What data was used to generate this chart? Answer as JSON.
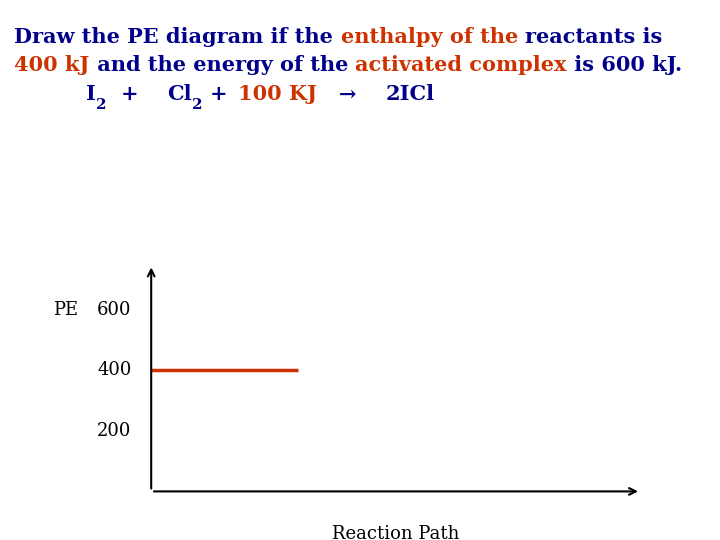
{
  "bg_color": "#ffffff",
  "title_color_blue": "#00008B",
  "title_color_red": "#cc3300",
  "text_color_black": "#000000",
  "line_color": "#cc3300",
  "pe_label": "PE",
  "xlabel": "Reaction Path",
  "yticks": [
    200,
    400,
    600
  ],
  "reactant_level": 400,
  "line_x_start": 0.0,
  "line_x_end": 0.3,
  "ylim": [
    0,
    750
  ],
  "xlim": [
    0,
    1.0
  ],
  "fontsize_title": 15,
  "fontsize_eq": 15,
  "fontsize_tick": 13,
  "fontsize_pe": 13,
  "fontsize_xlabel": 13
}
